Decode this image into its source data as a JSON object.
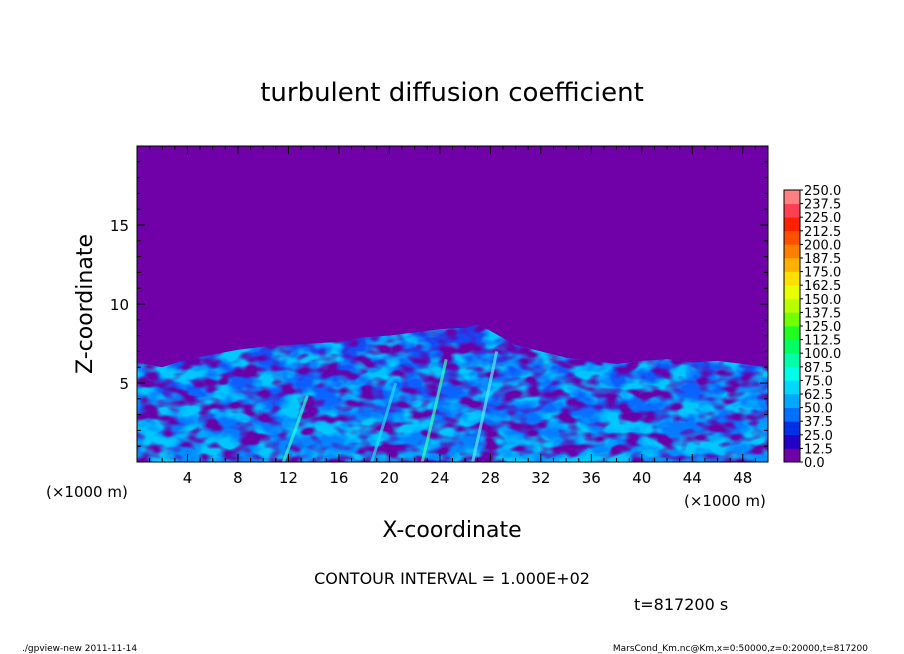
{
  "chart_data": {
    "type": "heatmap",
    "title": "turbulent diffusion coefficient",
    "xlabel": "X-coordinate",
    "ylabel": "Z-coordinate",
    "x_unit_left": "(×1000 m)",
    "x_unit_right": "(×1000 m)",
    "xlim": [
      0,
      50
    ],
    "ylim": [
      0,
      20
    ],
    "x_ticks": [
      "4",
      "8",
      "12",
      "16",
      "20",
      "24",
      "28",
      "32",
      "36",
      "40",
      "44",
      "48"
    ],
    "y_ticks": [
      "5",
      "10",
      "15"
    ],
    "x_tick_values": [
      4,
      8,
      12,
      16,
      20,
      24,
      28,
      32,
      36,
      40,
      44,
      48
    ],
    "y_tick_values": [
      5,
      10,
      15
    ],
    "background_color": "#7000a8",
    "colorbar": {
      "levels": [
        "0.0",
        "12.5",
        "25.0",
        "37.5",
        "50.0",
        "62.5",
        "75.0",
        "87.5",
        "100.0",
        "112.5",
        "125.0",
        "137.5",
        "150.0",
        "162.5",
        "175.0",
        "187.5",
        "200.0",
        "212.5",
        "225.0",
        "237.5",
        "250.0"
      ],
      "colors": [
        "#7000a8",
        "#2200c8",
        "#0030e8",
        "#0070ff",
        "#00a8ff",
        "#00d8ff",
        "#00ffe8",
        "#00ffa8",
        "#00ff60",
        "#20ff20",
        "#70ff00",
        "#b8ff00",
        "#e8ff00",
        "#ffe000",
        "#ffb000",
        "#ff8000",
        "#ff5000",
        "#ff2000",
        "#ff4050",
        "#ff8080"
      ]
    },
    "turbulent_layer_top_km": [
      [
        0,
        6.3
      ],
      [
        2,
        6.0
      ],
      [
        4,
        6.5
      ],
      [
        6,
        6.8
      ],
      [
        8,
        7.1
      ],
      [
        10,
        7.3
      ],
      [
        12,
        7.4
      ],
      [
        14,
        7.5
      ],
      [
        16,
        7.6
      ],
      [
        18,
        7.9
      ],
      [
        20,
        8.0
      ],
      [
        22,
        8.2
      ],
      [
        24,
        8.4
      ],
      [
        26,
        8.5
      ],
      [
        27,
        8.7
      ],
      [
        28,
        8.3
      ],
      [
        30,
        7.4
      ],
      [
        32,
        7.0
      ],
      [
        34,
        6.6
      ],
      [
        36,
        6.4
      ],
      [
        38,
        6.2
      ],
      [
        40,
        6.4
      ],
      [
        42,
        6.5
      ],
      [
        44,
        6.3
      ],
      [
        46,
        6.4
      ],
      [
        48,
        6.2
      ],
      [
        50,
        6.0
      ]
    ],
    "contour_interval_text": "CONTOUR INTERVAL = 1.000E+02",
    "time_text": "t=817200 s"
  },
  "footer": {
    "left": "./gpview-new   2011-11-14",
    "right": "MarsCond_Km.nc@Km,x=0:50000,z=0:20000,t=817200"
  }
}
